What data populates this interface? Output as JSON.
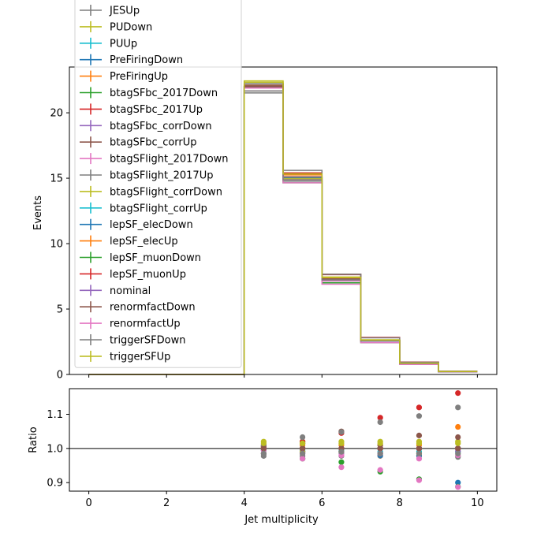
{
  "chart_data": [
    {
      "type": "step",
      "xlabel": "",
      "ylabel": "Events",
      "xlim": [
        -0.5,
        10.5
      ],
      "ylim": [
        0,
        23.5
      ],
      "yticks": [
        0,
        5,
        10,
        15,
        20
      ],
      "xticks": [
        0,
        2,
        4,
        6,
        8,
        10
      ],
      "bin_edges": [
        0,
        1,
        2,
        3,
        4,
        5,
        6,
        7,
        8,
        9,
        10
      ],
      "nominal": [
        0,
        0,
        0,
        0,
        22.0,
        15.1,
        7.3,
        2.6,
        0.85,
        0.22
      ],
      "legend": {
        "position": "upper-left",
        "entries": [
          {
            "label": "JESUp",
            "color": "#7f7f7f"
          },
          {
            "label": "PUDown",
            "color": "#bcbd22"
          },
          {
            "label": "PUUp",
            "color": "#17becf"
          },
          {
            "label": "PreFiringDown",
            "color": "#1f77b4"
          },
          {
            "label": "PreFiringUp",
            "color": "#ff7f0e"
          },
          {
            "label": "btagSFbc_2017Down",
            "color": "#2ca02c"
          },
          {
            "label": "btagSFbc_2017Up",
            "color": "#d62728"
          },
          {
            "label": "btagSFbc_corrDown",
            "color": "#9467bd"
          },
          {
            "label": "btagSFbc_corrUp",
            "color": "#8c564b"
          },
          {
            "label": "btagSFlight_2017Down",
            "color": "#e377c2"
          },
          {
            "label": "btagSFlight_2017Up",
            "color": "#7f7f7f"
          },
          {
            "label": "btagSFlight_corrDown",
            "color": "#bcbd22"
          },
          {
            "label": "btagSFlight_corrUp",
            "color": "#17becf"
          },
          {
            "label": "lepSF_elecDown",
            "color": "#1f77b4"
          },
          {
            "label": "lepSF_elecUp",
            "color": "#ff7f0e"
          },
          {
            "label": "lepSF_muonDown",
            "color": "#2ca02c"
          },
          {
            "label": "lepSF_muonUp",
            "color": "#d62728"
          },
          {
            "label": "nominal",
            "color": "#9467bd"
          },
          {
            "label": "renormfactDown",
            "color": "#8c564b"
          },
          {
            "label": "renormfactUp",
            "color": "#e377c2"
          },
          {
            "label": "triggerSFDown",
            "color": "#7f7f7f"
          },
          {
            "label": "triggerSFUp",
            "color": "#bcbd22"
          }
        ]
      }
    },
    {
      "type": "scatter",
      "xlabel": "Jet multiplicity",
      "ylabel": "Ratio",
      "xlim": [
        -0.5,
        10.5
      ],
      "ylim": [
        0.875,
        1.175
      ],
      "yticks": [
        0.9,
        1.0,
        1.1
      ],
      "ytick_labels": [
        "0.9",
        "1.0",
        "1.1"
      ],
      "xticks": [
        0,
        2,
        4,
        6,
        8,
        10
      ],
      "reference_line": 1.0,
      "x": [
        4.5,
        5.5,
        6.5,
        7.5,
        8.5,
        9.5
      ],
      "series": [
        {
          "color": "#7f7f7f",
          "values": [
            0.978,
            0.978,
            0.978,
            0.978,
            0.978,
            0.975
          ]
        },
        {
          "color": "#bcbd22",
          "values": [
            1.02,
            1.02,
            1.02,
            1.02,
            1.02,
            1.02
          ]
        },
        {
          "color": "#17becf",
          "values": [
            0.995,
            0.995,
            0.995,
            0.99,
            0.99,
            0.99
          ]
        },
        {
          "color": "#1f77b4",
          "values": [
            1.0,
            0.99,
            0.99,
            0.98,
            0.98,
            0.9
          ]
        },
        {
          "color": "#ff7f0e",
          "values": [
            1.005,
            1.01,
            1.01,
            1.01,
            1.01,
            1.063
          ]
        },
        {
          "color": "#2ca02c",
          "values": [
            0.985,
            0.97,
            0.96,
            0.932,
            0.91,
            0.888
          ]
        },
        {
          "color": "#d62728",
          "values": [
            1.01,
            1.02,
            1.045,
            1.09,
            1.12,
            1.162
          ]
        },
        {
          "color": "#9467bd",
          "values": [
            0.995,
            0.99,
            0.985,
            0.985,
            1.0,
            0.992
          ]
        },
        {
          "color": "#8c564b",
          "values": [
            1.005,
            1.015,
            1.05,
            1.01,
            1.038,
            1.033
          ]
        },
        {
          "color": "#e377c2",
          "values": [
            0.995,
            0.97,
            0.945,
            0.937,
            0.907,
            0.887
          ]
        },
        {
          "color": "#7f7f7f",
          "values": [
            1.01,
            1.033,
            1.048,
            1.077,
            1.095,
            1.12
          ]
        },
        {
          "color": "#bcbd22",
          "values": [
            1.0,
            0.99,
            0.99,
            1.0,
            0.985,
            1.0
          ]
        },
        {
          "color": "#17becf",
          "values": [
            1.0,
            1.0,
            1.0,
            1.0,
            1.0,
            1.0
          ]
        },
        {
          "color": "#1f77b4",
          "values": [
            1.0,
            1.0,
            1.0,
            1.0,
            1.0,
            1.0
          ]
        },
        {
          "color": "#ff7f0e",
          "values": [
            1.0,
            1.0,
            1.0,
            1.0,
            1.0,
            1.0
          ]
        },
        {
          "color": "#2ca02c",
          "values": [
            1.0,
            1.0,
            1.0,
            1.0,
            1.0,
            1.0
          ]
        },
        {
          "color": "#d62728",
          "values": [
            1.0,
            1.0,
            1.0,
            1.0,
            1.0,
            1.0
          ]
        },
        {
          "color": "#9467bd",
          "values": [
            1.0,
            1.0,
            1.0,
            1.0,
            1.0,
            1.0
          ]
        },
        {
          "color": "#8c564b",
          "values": [
            1.0,
            1.0,
            1.0,
            1.0,
            1.0,
            1.0
          ]
        },
        {
          "color": "#e377c2",
          "values": [
            0.985,
            0.985,
            0.98,
            0.985,
            0.97,
            0.98
          ]
        },
        {
          "color": "#7f7f7f",
          "values": [
            0.985,
            0.985,
            0.99,
            0.985,
            0.985,
            0.985
          ]
        },
        {
          "color": "#bcbd22",
          "values": [
            1.015,
            1.015,
            1.015,
            1.015,
            1.015,
            1.015
          ]
        }
      ]
    }
  ]
}
